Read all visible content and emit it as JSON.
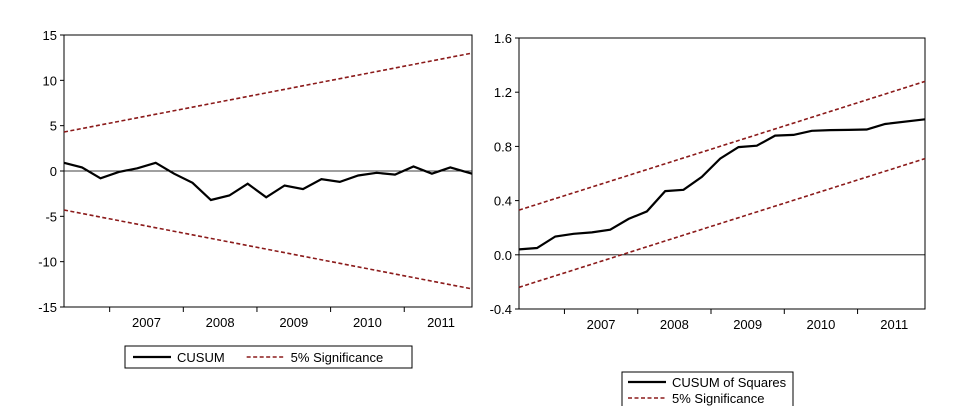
{
  "chart_data": [
    {
      "type": "line",
      "title": "",
      "xlabel": "",
      "ylabel": "",
      "xlim": [
        2006.38,
        2011.92
      ],
      "ylim": [
        -15,
        15
      ],
      "x_ticks": [
        2007,
        2008,
        2009,
        2010,
        2011
      ],
      "y_ticks": [
        15,
        10,
        5,
        0,
        -5,
        -10,
        -15
      ],
      "zero_line": true,
      "grid": false,
      "legend_position": "bottom-center",
      "series": [
        {
          "name": "CUSUM",
          "color": "#000000",
          "style": "solid",
          "x": [
            2006.38,
            2006.625,
            2006.875,
            2007.125,
            2007.375,
            2007.625,
            2007.875,
            2008.125,
            2008.375,
            2008.625,
            2008.875,
            2009.125,
            2009.375,
            2009.625,
            2009.875,
            2010.125,
            2010.375,
            2010.625,
            2010.875,
            2011.125,
            2011.375,
            2011.625,
            2011.92
          ],
          "y": [
            0.9,
            0.4,
            -0.8,
            -0.1,
            0.3,
            0.9,
            -0.3,
            -1.3,
            -3.2,
            -2.7,
            -1.4,
            -2.9,
            -1.6,
            -2.0,
            -0.9,
            -1.2,
            -0.5,
            -0.2,
            -0.4,
            0.5,
            -0.3,
            0.4,
            -0.3
          ]
        },
        {
          "name": "5% Significance",
          "color": "#8b1a1a",
          "style": "dashed",
          "x": [
            2006.38,
            2011.92
          ],
          "y": [
            4.3,
            13.0
          ]
        },
        {
          "name": "5% Significance",
          "color": "#8b1a1a",
          "style": "dashed",
          "legend": false,
          "x": [
            2006.38,
            2011.92
          ],
          "y": [
            -4.3,
            -13.0
          ]
        }
      ]
    },
    {
      "type": "line",
      "title": "",
      "xlabel": "",
      "ylabel": "",
      "xlim": [
        2006.38,
        2011.92
      ],
      "ylim": [
        -0.4,
        1.6
      ],
      "x_ticks": [
        2007,
        2008,
        2009,
        2010,
        2011
      ],
      "y_ticks": [
        1.6,
        1.2,
        0.8,
        0.4,
        0.0,
        -0.4
      ],
      "y_tick_labels": [
        "1.6",
        "1.2",
        "0.8",
        "0.4",
        "0.0",
        "-0.4"
      ],
      "zero_line": true,
      "grid": false,
      "legend_position": "bottom-center",
      "series": [
        {
          "name": "CUSUM of Squares",
          "color": "#000000",
          "style": "solid",
          "x": [
            2006.38,
            2006.625,
            2006.875,
            2007.125,
            2007.375,
            2007.625,
            2007.875,
            2008.125,
            2008.375,
            2008.625,
            2008.875,
            2009.125,
            2009.375,
            2009.625,
            2009.875,
            2010.125,
            2010.375,
            2010.625,
            2010.875,
            2011.125,
            2011.375,
            2011.92
          ],
          "y": [
            0.04,
            0.05,
            0.135,
            0.155,
            0.165,
            0.185,
            0.265,
            0.32,
            0.47,
            0.48,
            0.575,
            0.71,
            0.795,
            0.805,
            0.88,
            0.885,
            0.915,
            0.92,
            0.922,
            0.925,
            0.965,
            1.0
          ]
        },
        {
          "name": "5% Significance",
          "color": "#8b1a1a",
          "style": "dashed",
          "x": [
            2006.38,
            2011.92
          ],
          "y": [
            0.33,
            1.28
          ]
        },
        {
          "name": "5% Significance",
          "color": "#8b1a1a",
          "style": "dashed",
          "legend": false,
          "x": [
            2006.38,
            2011.92
          ],
          "y": [
            -0.24,
            0.71
          ]
        }
      ]
    }
  ]
}
